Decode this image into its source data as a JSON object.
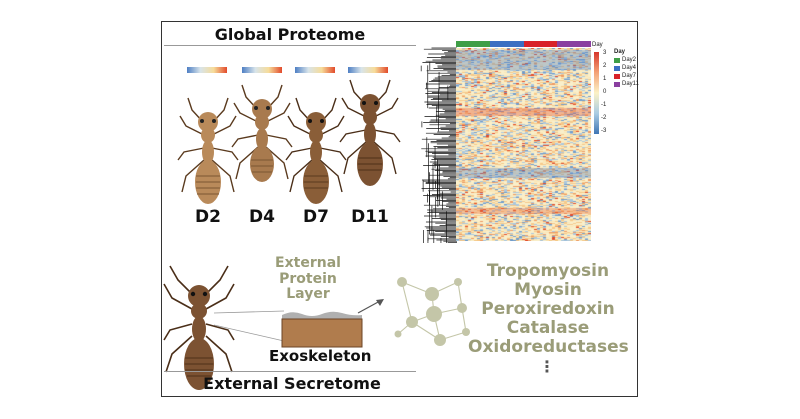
{
  "global_proteome": {
    "title": "Global Proteome",
    "days": [
      "D2",
      "D4",
      "D7",
      "D11"
    ]
  },
  "heatmap": {
    "scale_title": "Day",
    "scale_ticks": [
      "3",
      "2",
      "1",
      "0",
      "-1",
      "-2",
      "-3"
    ],
    "legend_title": "Day",
    "legend_items": [
      {
        "label": "Day2",
        "color": "#3f9e47"
      },
      {
        "label": "Day4",
        "color": "#3b6fc2"
      },
      {
        "label": "Day7",
        "color": "#d8222a"
      },
      {
        "label": "Day11",
        "color": "#8a3fa0"
      }
    ],
    "colors": {
      "high": "#e24b2c",
      "mid": "#f7e7b0",
      "low": "#4e7fc4"
    }
  },
  "secretome": {
    "title": "External Secretome",
    "layer_label": "External Protein Layer",
    "exoskeleton_label": "Exoskeleton",
    "proteins": [
      "Tropomyosin",
      "Myosin",
      "Peroxiredoxin",
      "Catalase",
      "Oxidoreductases"
    ],
    "more": "⋮"
  }
}
